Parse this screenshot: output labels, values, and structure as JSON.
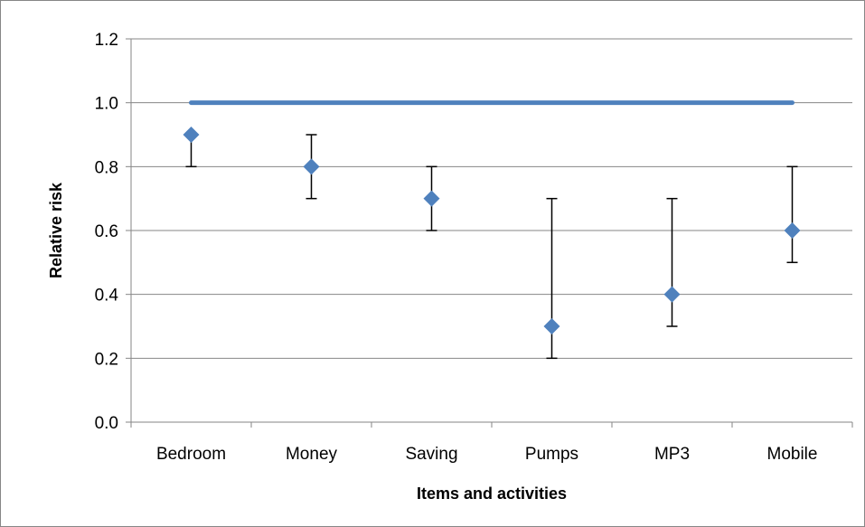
{
  "chart_data": {
    "type": "scatter",
    "title": "",
    "xlabel": "Items and activities",
    "ylabel": "Relative risk",
    "ylim": [
      0,
      1.2
    ],
    "yticks": [
      "0.0",
      "0.2",
      "0.4",
      "0.6",
      "0.8",
      "1.0",
      "1.2"
    ],
    "categories": [
      "Bedroom",
      "Money",
      "Saving",
      "Pumps",
      "MP3",
      "Mobile"
    ],
    "series": [
      {
        "values": [
          0.9,
          0.8,
          0.7,
          0.3,
          0.4,
          0.6
        ],
        "error_low": [
          0.8,
          0.7,
          0.6,
          0.2,
          0.3,
          0.5
        ],
        "error_high": [
          0.9,
          0.9,
          0.8,
          0.7,
          0.7,
          0.8
        ],
        "marker": "diamond",
        "color": "#4f81bd"
      }
    ],
    "reference_line": {
      "y": 1.0,
      "color": "#4f81bd"
    },
    "grid": true,
    "legend": "none"
  }
}
